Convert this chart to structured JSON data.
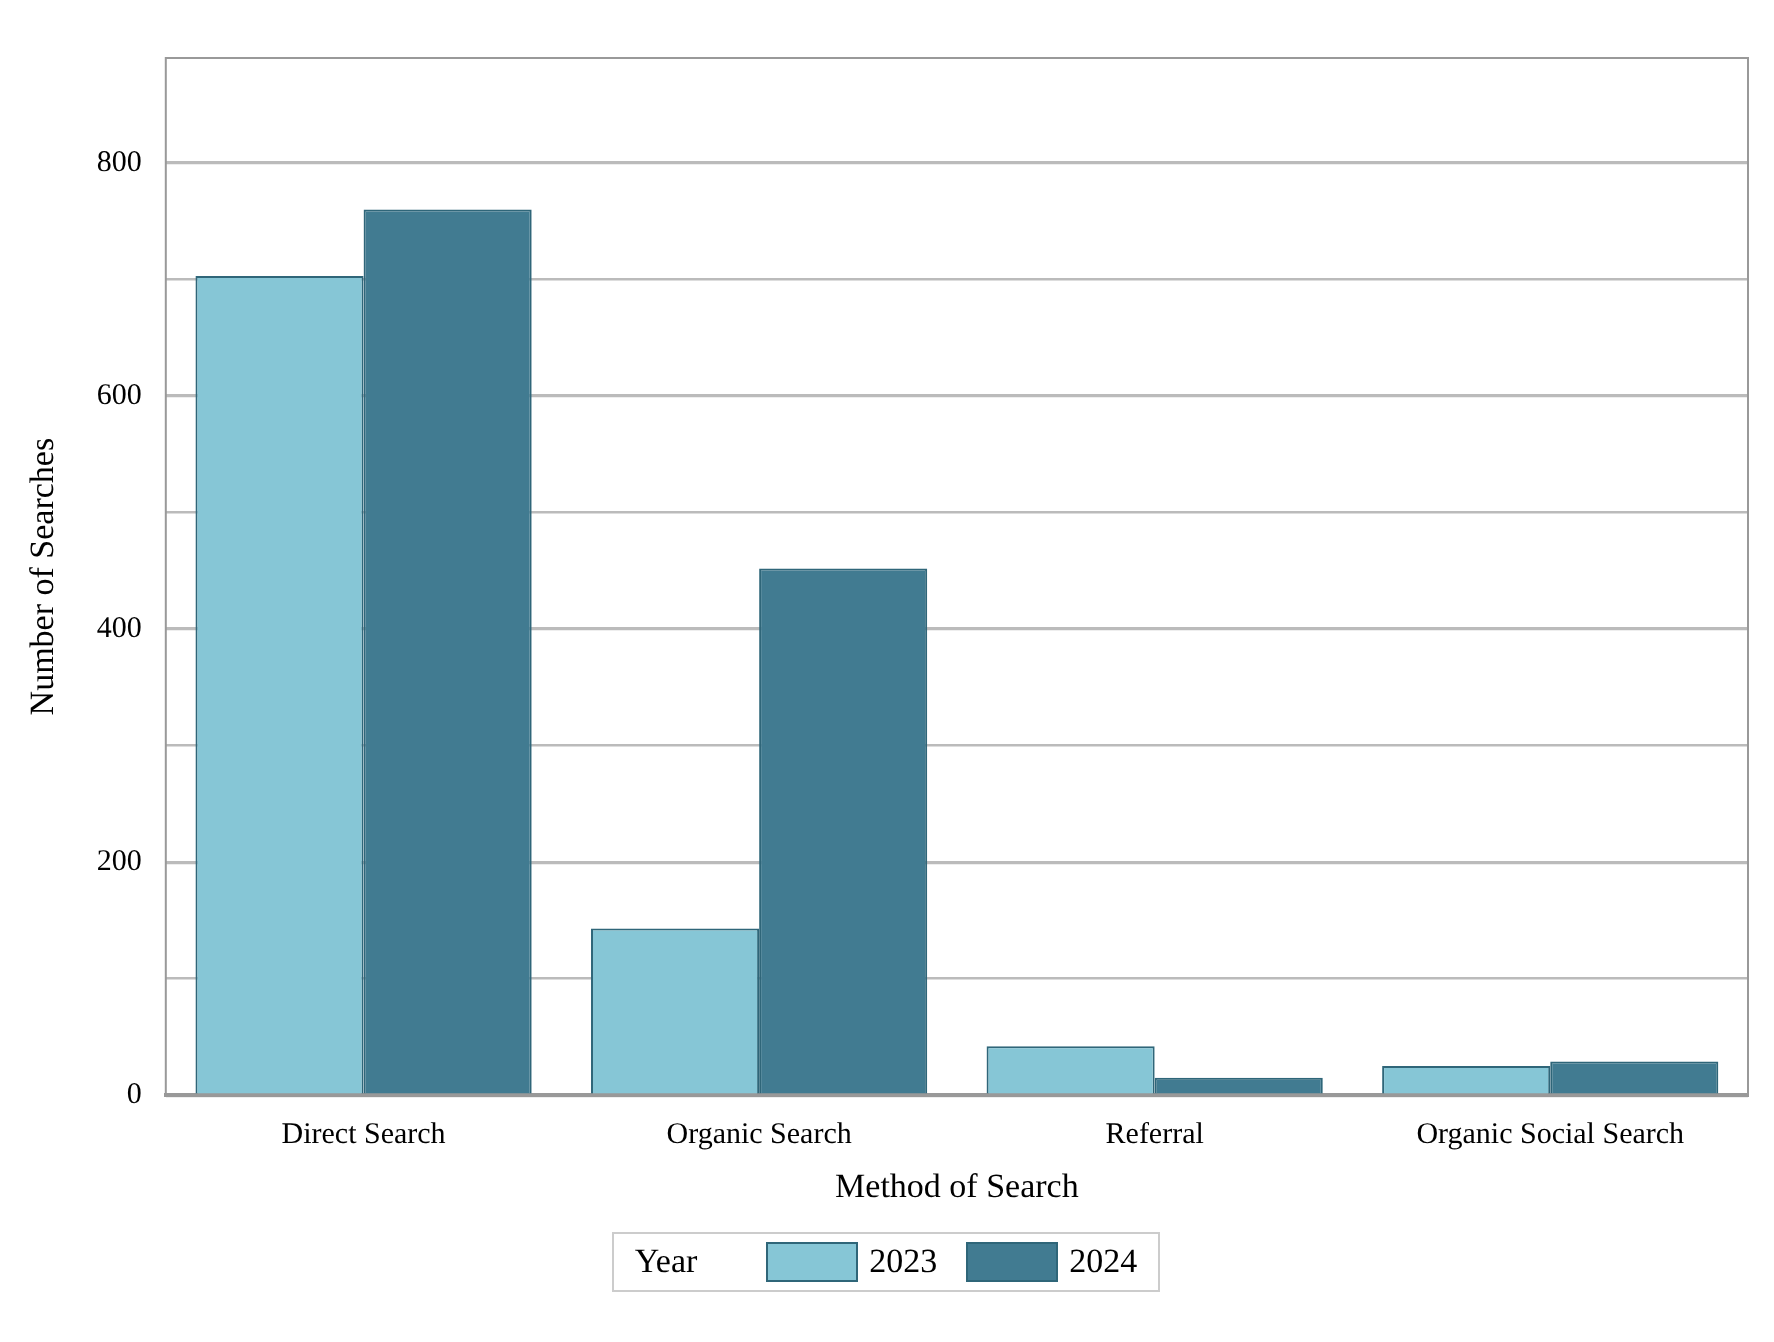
{
  "chart_data": {
    "type": "bar",
    "xlabel": "Method of Search",
    "ylabel": "Number of Searches",
    "legend_title": "Year",
    "categories": [
      "Direct Search",
      "Organic Search",
      "Referral",
      "Organic Social Search"
    ],
    "series": [
      {
        "name": "2023",
        "color": "#86c6d6",
        "values": [
          703,
          143,
          42,
          25
        ]
      },
      {
        "name": "2024",
        "color": "#417b91",
        "values": [
          760,
          452,
          15,
          29
        ]
      }
    ],
    "ylim": [
      0,
      890
    ],
    "yticks": [
      0,
      {
        "value": 100,
        "label": null
      },
      200,
      {
        "value": 300,
        "label": null
      },
      400,
      {
        "value": 500,
        "label": null
      },
      600,
      {
        "value": 700,
        "label": null
      },
      800
    ],
    "grid": "y",
    "legend": "bottom"
  }
}
